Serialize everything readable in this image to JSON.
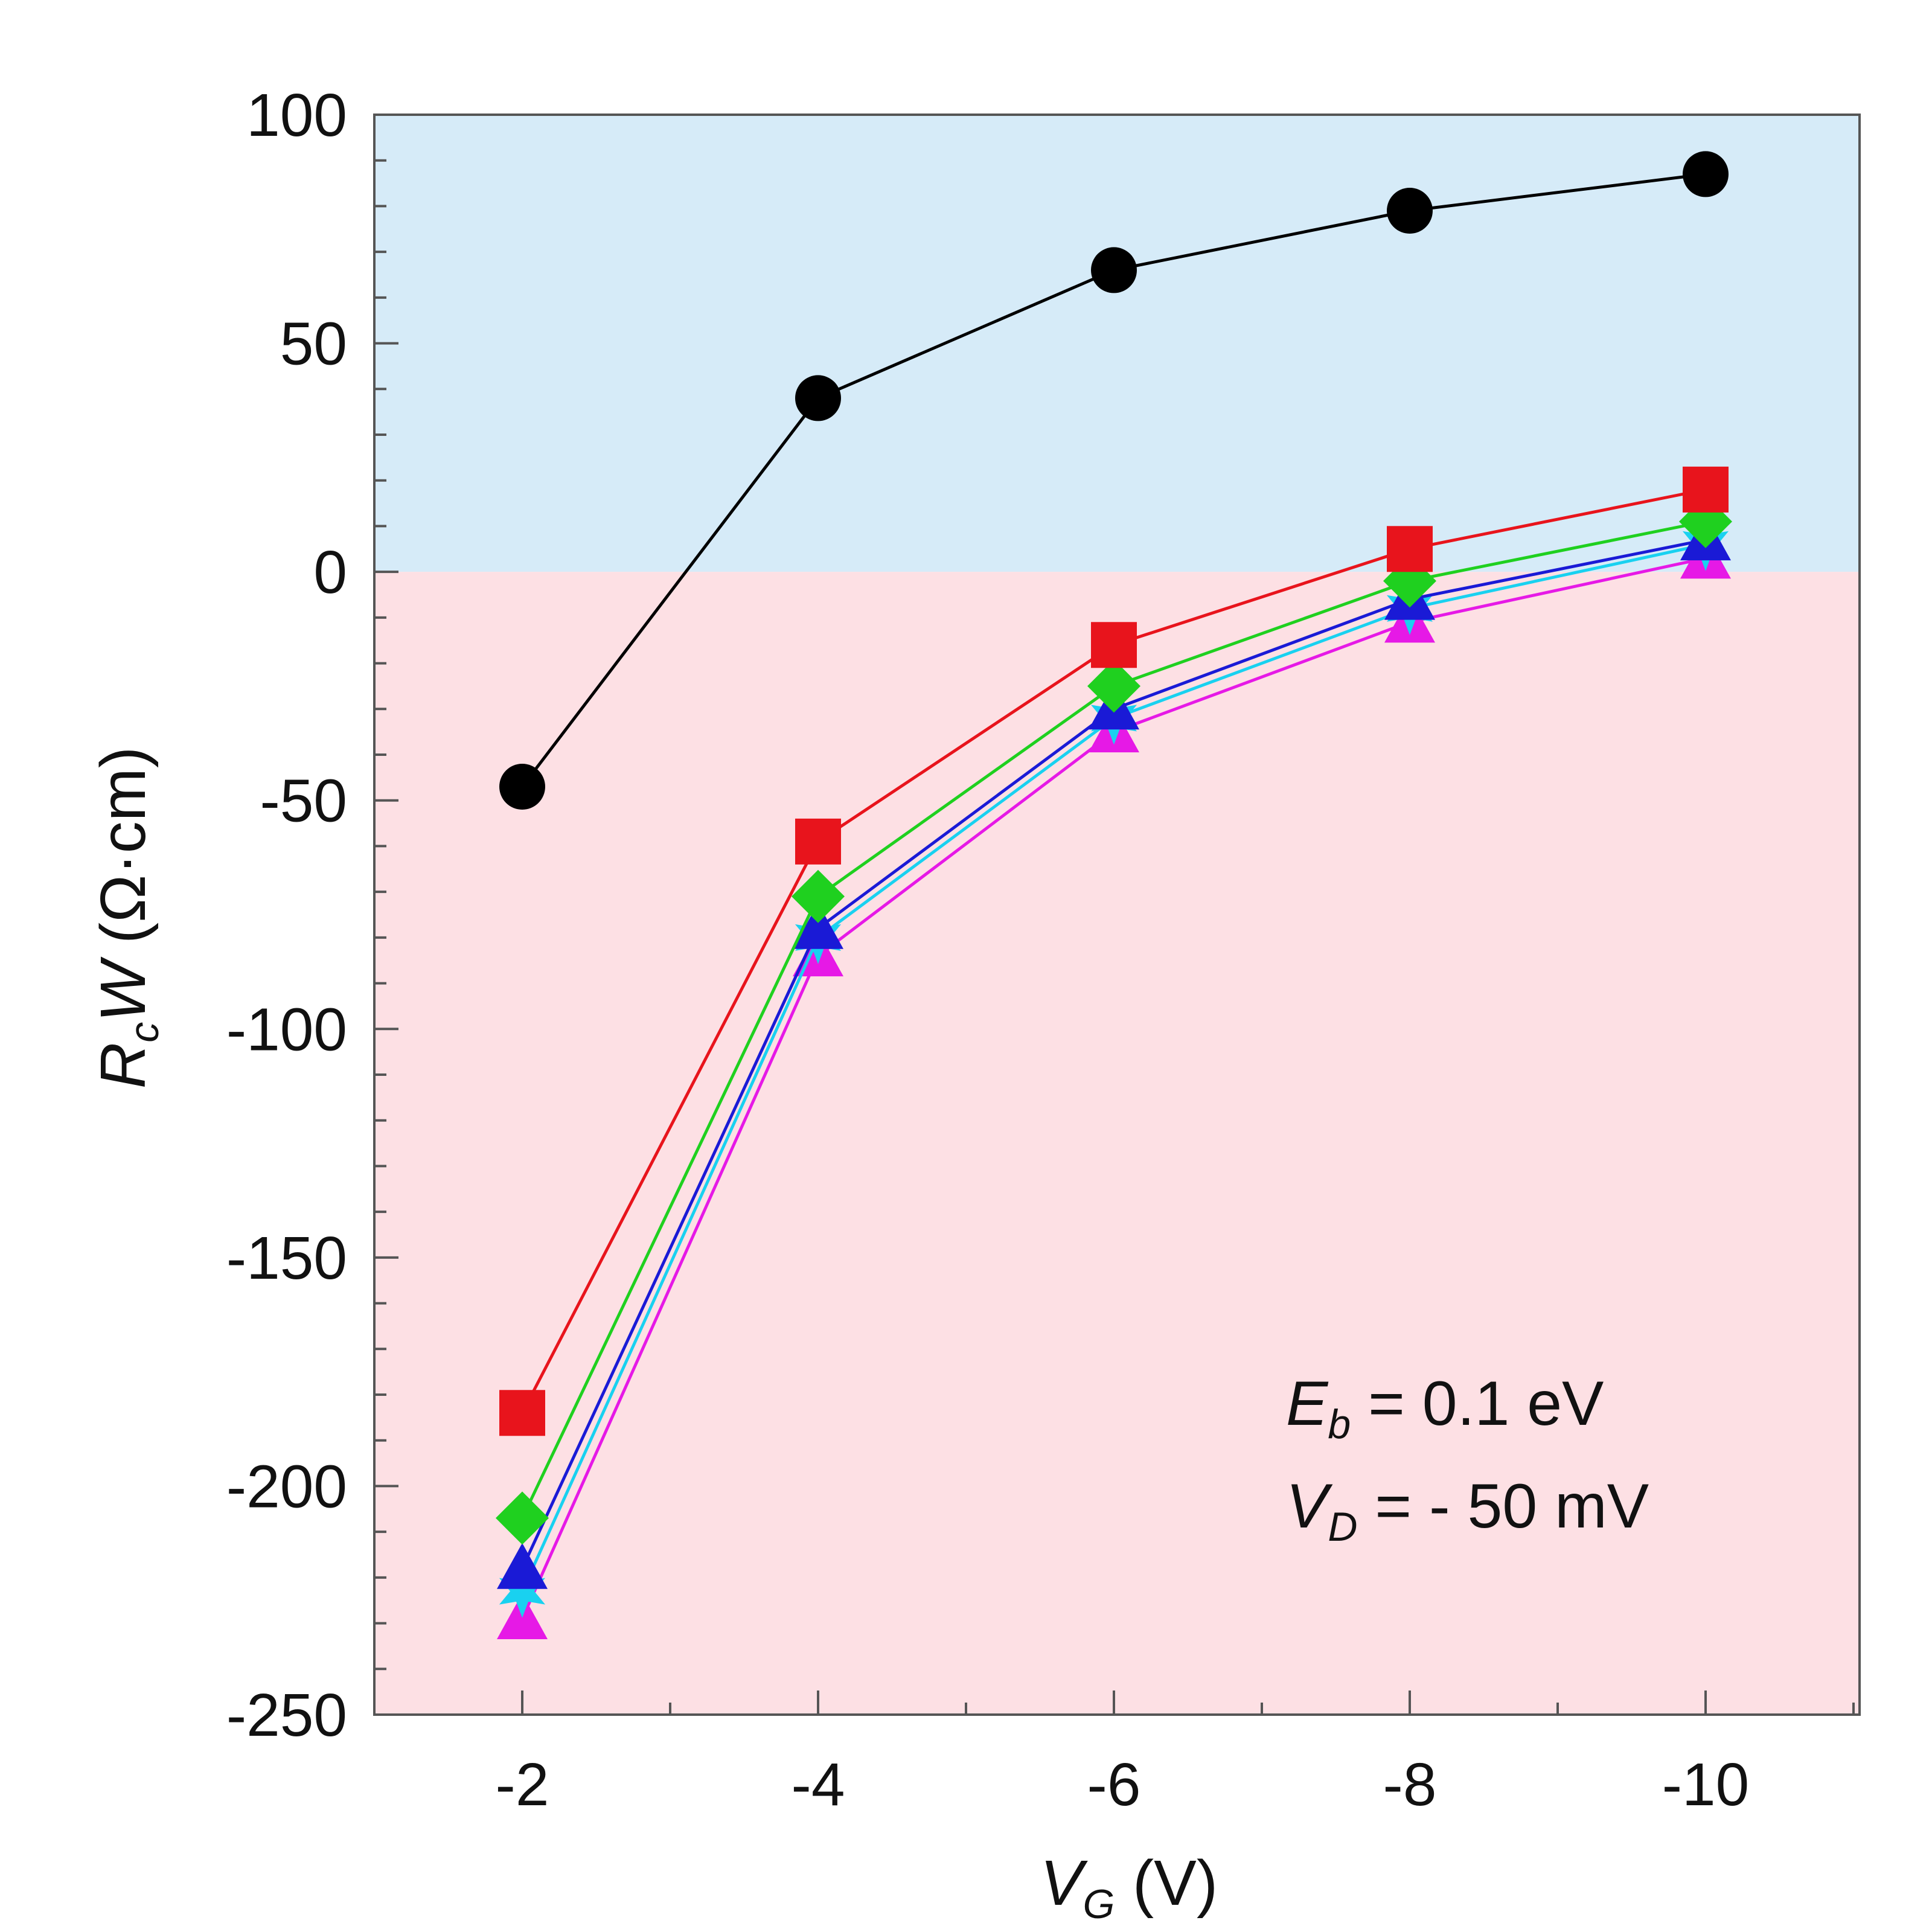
{
  "chart_data": {
    "type": "line",
    "title": "",
    "x": [
      -2,
      -4,
      -6,
      -8,
      -10
    ],
    "xticks": [
      "-2",
      "-4",
      "-6",
      "-8",
      "-10"
    ],
    "yticks": [
      "100",
      "50",
      "0",
      "-50",
      "-100",
      "-150",
      "-200",
      "-250"
    ],
    "ylim": [
      -250,
      100
    ],
    "xlabel": {
      "main": "V",
      "sub": "G",
      "rest": " (V)"
    },
    "ylabel": {
      "main": "R",
      "sub": "c",
      "mid": "W",
      "rest": " (Ω·cm)"
    },
    "regions": [
      {
        "name": "positive",
        "from": 0,
        "to": 100,
        "color": "#d6ebf8"
      },
      {
        "name": "negative",
        "from": -250,
        "to": 0,
        "color": "#fde0e4"
      }
    ],
    "series": [
      {
        "name": "black-circles",
        "marker": "circle",
        "color": "#000000",
        "values": [
          -47,
          38,
          66,
          79,
          87
        ]
      },
      {
        "name": "red-squares",
        "marker": "square",
        "color": "#e8141c",
        "values": [
          -184,
          -59,
          -16,
          5,
          18
        ]
      },
      {
        "name": "green-diamonds",
        "marker": "diamond",
        "color": "#1fd01f",
        "values": [
          -207,
          -71,
          -25,
          -2,
          11
        ]
      },
      {
        "name": "blue-triangles",
        "marker": "triangle",
        "color": "#1a1ad6",
        "values": [
          -218,
          -78,
          -30,
          -6,
          7
        ]
      },
      {
        "name": "cyan-stars",
        "marker": "star",
        "color": "#19d1f0",
        "values": [
          -223,
          -80,
          -32,
          -8,
          6
        ]
      },
      {
        "name": "magenta-triangles",
        "marker": "triangle",
        "color": "#e619e6",
        "values": [
          -229,
          -84,
          -35,
          -11,
          3
        ]
      }
    ],
    "annotation": {
      "line1": {
        "main": "E",
        "sub": "b",
        "rest": " = 0.1 eV"
      },
      "line2": {
        "main": "V",
        "sub": "D",
        "rest": " = - 50 mV"
      }
    }
  }
}
